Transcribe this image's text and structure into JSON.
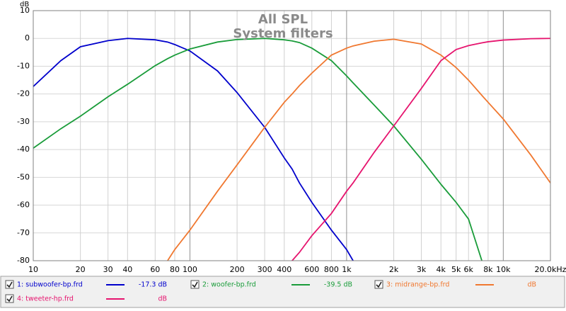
{
  "chart_data": {
    "type": "line",
    "title": "All SPL",
    "subtitle": "System filters",
    "y_label": "dB",
    "x_scale": "log",
    "grid": true,
    "x": [
      10,
      15,
      20,
      30,
      40,
      60,
      72,
      80,
      100,
      150,
      200,
      300,
      400,
      449,
      500,
      600,
      800,
      1000,
      1100,
      1500,
      2000,
      3000,
      4000,
      5000,
      6000,
      7300,
      8000,
      10000,
      15000,
      20000
    ],
    "series": [
      {
        "name": "1: subwoofer-bp.frd",
        "color": "#0000cc",
        "readout": "-17.3 dB",
        "values": [
          -17.3,
          -8,
          -3,
          -0.8,
          0,
          -0.5,
          -1.3,
          -2.2,
          -4.5,
          -11.7,
          -19.5,
          -32,
          -43,
          -47,
          -52,
          -59,
          -69,
          -76,
          -80,
          null,
          null,
          null,
          null,
          null,
          null,
          null,
          null,
          null,
          null,
          null
        ]
      },
      {
        "name": "2: woofer-bp.frd",
        "color": "#1a9c3a",
        "readout": "-39.5 dB",
        "values": [
          -39.5,
          -32.5,
          -28,
          -21,
          -16.5,
          -9.8,
          -7.3,
          -6,
          -3.8,
          -1.3,
          -0.4,
          0,
          -0.5,
          -0.9,
          -1.5,
          -3.5,
          -8,
          -13.5,
          -16,
          -24,
          -31.5,
          -43.5,
          -52.5,
          -59,
          -65,
          -80,
          null,
          null,
          null,
          null
        ]
      },
      {
        "name": "3: midrange-bp.frd",
        "color": "#f07830",
        "readout": "dB",
        "values": [
          null,
          null,
          null,
          null,
          null,
          null,
          -80,
          -76,
          -69,
          -55,
          -45.5,
          -32,
          -23,
          -20,
          -17,
          -12.5,
          -6,
          -3.5,
          -2.7,
          -1,
          -0.3,
          -2,
          -6,
          -10.5,
          -15,
          -20.5,
          -23,
          -29,
          -42,
          -52
        ]
      },
      {
        "name": "4: tweeter-hp.frd",
        "color": "#e6146e",
        "readout": "dB",
        "values": [
          null,
          null,
          null,
          null,
          null,
          null,
          null,
          null,
          null,
          null,
          null,
          null,
          null,
          -80,
          -77,
          -71,
          -63,
          -55,
          -52,
          -41,
          -31.5,
          -18,
          -8,
          -4,
          -2.6,
          -1.6,
          -1.2,
          -0.6,
          -0.1,
          0
        ]
      }
    ],
    "xlim": [
      10,
      20000
    ],
    "ylim": [
      -80,
      10
    ],
    "xticks": [
      10,
      20,
      30,
      40,
      60,
      80,
      100,
      200,
      300,
      400,
      600,
      800,
      {
        "value": 1000,
        "label": "1k"
      },
      {
        "value": 2000,
        "label": "2k"
      },
      {
        "value": 3000,
        "label": "3k"
      },
      {
        "value": 4000,
        "label": "4k"
      },
      {
        "value": 5000,
        "label": "5k"
      },
      {
        "value": 6000,
        "label": "6k"
      },
      {
        "value": 8000,
        "label": "8k"
      },
      {
        "value": 10000,
        "label": "10k"
      },
      {
        "value": 20000,
        "label": "20.0kHz"
      }
    ],
    "yticks": [
      10,
      0,
      -10,
      -20,
      -30,
      -40,
      -50,
      -60,
      -70,
      -80
    ]
  }
}
